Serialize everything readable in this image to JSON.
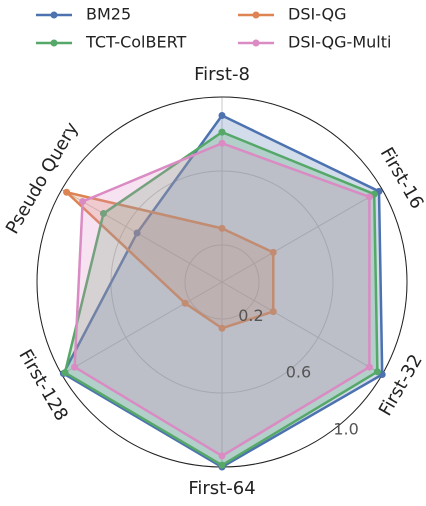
{
  "chart_data": {
    "type": "radar",
    "categories": [
      "First-8",
      "First-16",
      "First-32",
      "First-64",
      "First-128",
      "Pseudo Query"
    ],
    "series": [
      {
        "name": "BM25",
        "color": "#4c72b0",
        "values": [
          0.9,
          0.98,
          1.0,
          1.0,
          0.99,
          0.53
        ]
      },
      {
        "name": "DSI-QG",
        "color": "#dd8452",
        "values": [
          0.29,
          0.32,
          0.32,
          0.25,
          0.23,
          0.97
        ]
      },
      {
        "name": "TCT-ColBERT",
        "color": "#55a868",
        "values": [
          0.81,
          0.95,
          0.97,
          0.99,
          0.98,
          0.74
        ]
      },
      {
        "name": "DSI-QG-Multi",
        "color": "#da8bc3",
        "values": [
          0.75,
          0.92,
          0.92,
          0.94,
          0.92,
          0.87
        ]
      }
    ],
    "ylim": [
      0,
      1.0
    ],
    "yticks": [
      0.2,
      0.6,
      {
        "value": 1.0,
        "label": "1.0"
      }
    ],
    "grid": true
  }
}
